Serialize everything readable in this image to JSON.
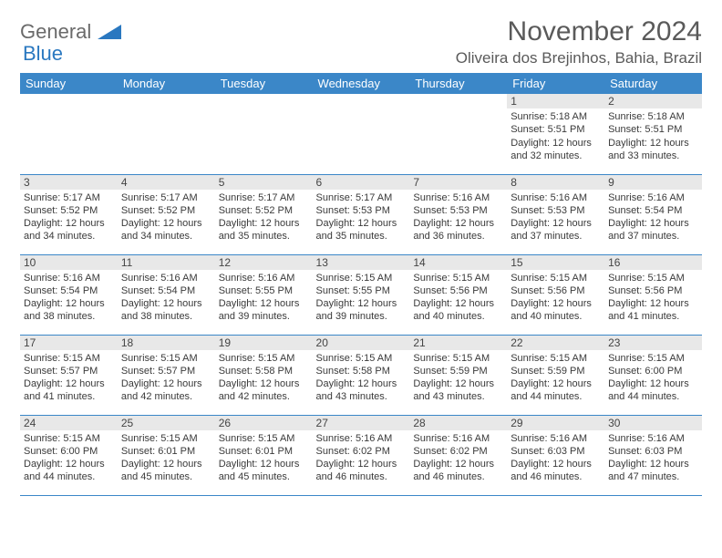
{
  "brand": {
    "word1": "General",
    "word2": "Blue"
  },
  "title": "November 2024",
  "location": "Oliveira dos Brejinhos, Bahia, Brazil",
  "colors": {
    "header_bg": "#3b87c8",
    "header_fg": "#ffffff",
    "daynum_bg": "#e8e8e8",
    "text": "#3a3a3a",
    "title": "#5a5a5a",
    "logo_gray": "#6a6a6a",
    "logo_blue": "#2a78c0"
  },
  "day_headers": [
    "Sunday",
    "Monday",
    "Tuesday",
    "Wednesday",
    "Thursday",
    "Friday",
    "Saturday"
  ],
  "weeks": [
    [
      null,
      null,
      null,
      null,
      null,
      {
        "n": "1",
        "sr": "5:18 AM",
        "ss": "5:51 PM",
        "dl": "12 hours and 32 minutes."
      },
      {
        "n": "2",
        "sr": "5:18 AM",
        "ss": "5:51 PM",
        "dl": "12 hours and 33 minutes."
      }
    ],
    [
      {
        "n": "3",
        "sr": "5:17 AM",
        "ss": "5:52 PM",
        "dl": "12 hours and 34 minutes."
      },
      {
        "n": "4",
        "sr": "5:17 AM",
        "ss": "5:52 PM",
        "dl": "12 hours and 34 minutes."
      },
      {
        "n": "5",
        "sr": "5:17 AM",
        "ss": "5:52 PM",
        "dl": "12 hours and 35 minutes."
      },
      {
        "n": "6",
        "sr": "5:17 AM",
        "ss": "5:53 PM",
        "dl": "12 hours and 35 minutes."
      },
      {
        "n": "7",
        "sr": "5:16 AM",
        "ss": "5:53 PM",
        "dl": "12 hours and 36 minutes."
      },
      {
        "n": "8",
        "sr": "5:16 AM",
        "ss": "5:53 PM",
        "dl": "12 hours and 37 minutes."
      },
      {
        "n": "9",
        "sr": "5:16 AM",
        "ss": "5:54 PM",
        "dl": "12 hours and 37 minutes."
      }
    ],
    [
      {
        "n": "10",
        "sr": "5:16 AM",
        "ss": "5:54 PM",
        "dl": "12 hours and 38 minutes."
      },
      {
        "n": "11",
        "sr": "5:16 AM",
        "ss": "5:54 PM",
        "dl": "12 hours and 38 minutes."
      },
      {
        "n": "12",
        "sr": "5:16 AM",
        "ss": "5:55 PM",
        "dl": "12 hours and 39 minutes."
      },
      {
        "n": "13",
        "sr": "5:15 AM",
        "ss": "5:55 PM",
        "dl": "12 hours and 39 minutes."
      },
      {
        "n": "14",
        "sr": "5:15 AM",
        "ss": "5:56 PM",
        "dl": "12 hours and 40 minutes."
      },
      {
        "n": "15",
        "sr": "5:15 AM",
        "ss": "5:56 PM",
        "dl": "12 hours and 40 minutes."
      },
      {
        "n": "16",
        "sr": "5:15 AM",
        "ss": "5:56 PM",
        "dl": "12 hours and 41 minutes."
      }
    ],
    [
      {
        "n": "17",
        "sr": "5:15 AM",
        "ss": "5:57 PM",
        "dl": "12 hours and 41 minutes."
      },
      {
        "n": "18",
        "sr": "5:15 AM",
        "ss": "5:57 PM",
        "dl": "12 hours and 42 minutes."
      },
      {
        "n": "19",
        "sr": "5:15 AM",
        "ss": "5:58 PM",
        "dl": "12 hours and 42 minutes."
      },
      {
        "n": "20",
        "sr": "5:15 AM",
        "ss": "5:58 PM",
        "dl": "12 hours and 43 minutes."
      },
      {
        "n": "21",
        "sr": "5:15 AM",
        "ss": "5:59 PM",
        "dl": "12 hours and 43 minutes."
      },
      {
        "n": "22",
        "sr": "5:15 AM",
        "ss": "5:59 PM",
        "dl": "12 hours and 44 minutes."
      },
      {
        "n": "23",
        "sr": "5:15 AM",
        "ss": "6:00 PM",
        "dl": "12 hours and 44 minutes."
      }
    ],
    [
      {
        "n": "24",
        "sr": "5:15 AM",
        "ss": "6:00 PM",
        "dl": "12 hours and 44 minutes."
      },
      {
        "n": "25",
        "sr": "5:15 AM",
        "ss": "6:01 PM",
        "dl": "12 hours and 45 minutes."
      },
      {
        "n": "26",
        "sr": "5:15 AM",
        "ss": "6:01 PM",
        "dl": "12 hours and 45 minutes."
      },
      {
        "n": "27",
        "sr": "5:16 AM",
        "ss": "6:02 PM",
        "dl": "12 hours and 46 minutes."
      },
      {
        "n": "28",
        "sr": "5:16 AM",
        "ss": "6:02 PM",
        "dl": "12 hours and 46 minutes."
      },
      {
        "n": "29",
        "sr": "5:16 AM",
        "ss": "6:03 PM",
        "dl": "12 hours and 46 minutes."
      },
      {
        "n": "30",
        "sr": "5:16 AM",
        "ss": "6:03 PM",
        "dl": "12 hours and 47 minutes."
      }
    ]
  ],
  "labels": {
    "sunrise": "Sunrise: ",
    "sunset": "Sunset: ",
    "daylight": "Daylight: "
  }
}
